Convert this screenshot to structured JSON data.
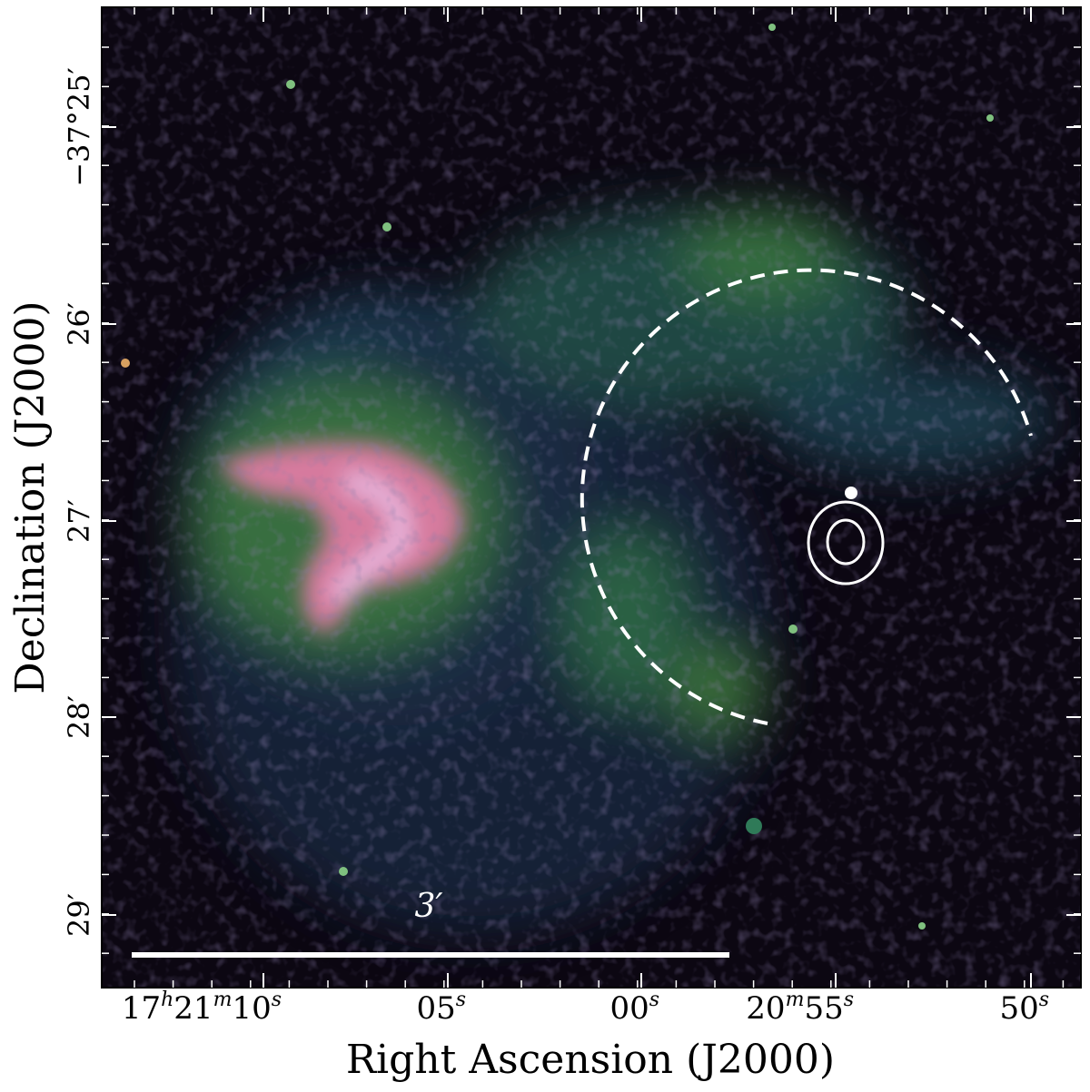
{
  "x_axis": {
    "label": "Right Ascension (J2000)",
    "ticks": [
      [
        [
          "17",
          "h"
        ],
        [
          "21",
          "m"
        ],
        [
          "10",
          "s"
        ]
      ],
      [
        [
          "05",
          "s"
        ]
      ],
      [
        [
          "00",
          "s"
        ]
      ],
      [
        [
          "20",
          "m"
        ],
        [
          "55",
          "s"
        ]
      ],
      [
        [
          "50",
          "s"
        ]
      ]
    ]
  },
  "y_axis": {
    "label": "Declination (J2000)",
    "ticks": [
      "−37°25′",
      "26′",
      "27′",
      "28′",
      "29′"
    ]
  },
  "scale_bar": {
    "label": "3′"
  }
}
